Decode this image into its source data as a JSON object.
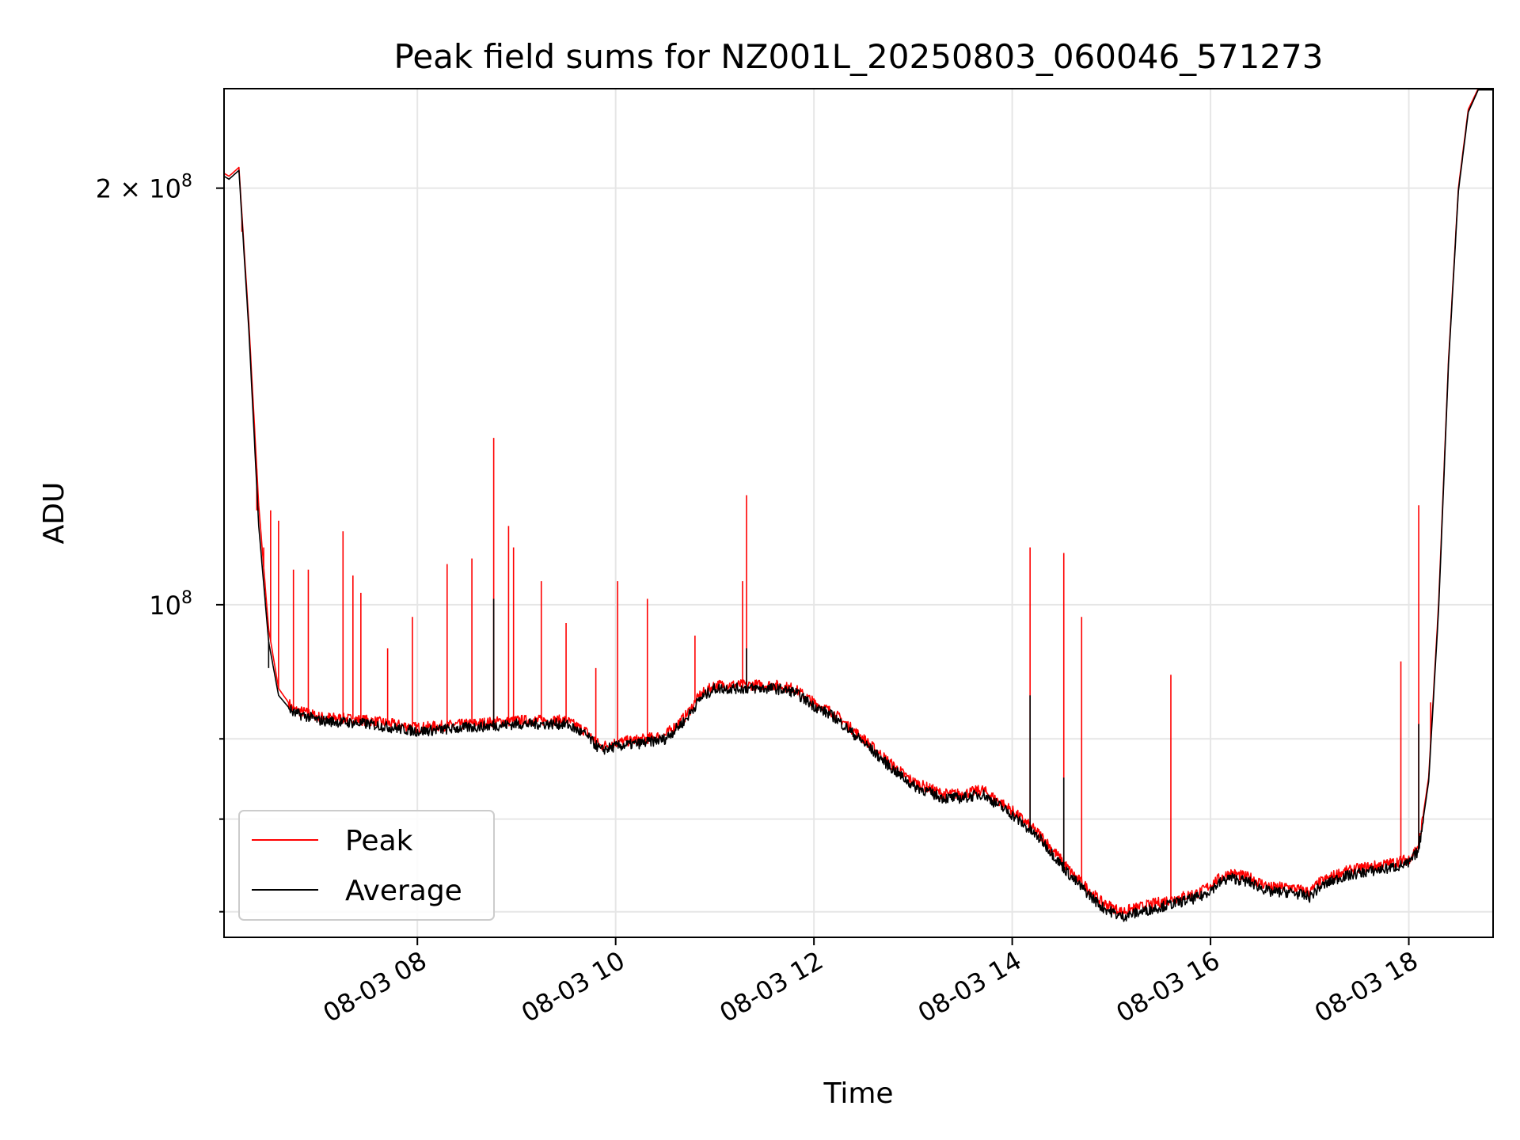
{
  "chart_data": {
    "type": "line",
    "title": "Peak field sums for NZ001L_20250803_060046_571273",
    "xlabel": "Time",
    "ylabel": "ADU",
    "x_unit": "time of day, 2025-08-03, hours",
    "xlim": [
      6.05,
      18.85
    ],
    "ylim": [
      57500000,
      236000000
    ],
    "yscale": "log",
    "grid": true,
    "legend_position": "lower-left",
    "x_ticks": [
      {
        "value": 8,
        "label": "08-03 08"
      },
      {
        "value": 10,
        "label": "08-03 10"
      },
      {
        "value": 12,
        "label": "08-03 12"
      },
      {
        "value": 14,
        "label": "08-03 14"
      },
      {
        "value": 16,
        "label": "08-03 16"
      },
      {
        "value": 18,
        "label": "08-03 18"
      }
    ],
    "y_ticks": [
      {
        "value": 100000000,
        "base": "10",
        "exp": "8"
      },
      {
        "value": 200000000,
        "base": "2 × 10",
        "exp": "8"
      }
    ],
    "y_minor_ticks": [
      60000000,
      70000000,
      80000000
    ],
    "series": [
      {
        "name": "Peak",
        "color": "#ff0000",
        "x": [
          6.05,
          6.1,
          6.2,
          6.3,
          6.4,
          6.5,
          6.6,
          6.75,
          6.9,
          7.0,
          7.5,
          8.0,
          8.5,
          9.0,
          9.5,
          9.7,
          9.85,
          10.0,
          10.3,
          10.5,
          10.7,
          10.85,
          11.0,
          11.3,
          11.6,
          11.8,
          12.0,
          12.2,
          12.5,
          12.8,
          13.0,
          13.3,
          13.5,
          13.7,
          14.0,
          14.3,
          14.6,
          14.9,
          15.1,
          15.3,
          15.5,
          15.7,
          15.9,
          16.1,
          16.2,
          16.4,
          16.6,
          16.8,
          17.0,
          17.1,
          17.3,
          17.5,
          17.8,
          18.0,
          18.1,
          18.2,
          18.3,
          18.4,
          18.5,
          18.6,
          18.7,
          18.85
        ],
        "y": [
          205000000,
          204000000,
          207000000,
          160000000,
          118000000,
          96000000,
          87000000,
          84000000,
          83500000,
          83000000,
          82500000,
          81500000,
          82000000,
          82500000,
          82500000,
          81000000,
          79000000,
          79500000,
          80000000,
          80500000,
          83000000,
          86000000,
          87500000,
          87500000,
          87500000,
          87000000,
          85000000,
          83500000,
          80000000,
          76500000,
          74500000,
          73000000,
          73000000,
          73500000,
          71000000,
          68000000,
          64000000,
          61000000,
          60000000,
          60500000,
          61000000,
          61500000,
          62000000,
          63500000,
          64000000,
          63500000,
          62500000,
          62500000,
          62000000,
          63000000,
          64000000,
          64500000,
          65000000,
          65500000,
          67000000,
          75000000,
          100000000,
          150000000,
          200000000,
          228000000,
          236000000,
          236000000
        ],
        "spikes": [
          {
            "x": 6.23,
            "y": 186000000
          },
          {
            "x": 6.38,
            "y": 117000000
          },
          {
            "x": 6.45,
            "y": 110000000
          },
          {
            "x": 6.52,
            "y": 117000000
          },
          {
            "x": 6.6,
            "y": 115000000
          },
          {
            "x": 6.75,
            "y": 106000000
          },
          {
            "x": 6.9,
            "y": 106000000
          },
          {
            "x": 7.25,
            "y": 113000000
          },
          {
            "x": 7.35,
            "y": 105000000
          },
          {
            "x": 7.43,
            "y": 102000000
          },
          {
            "x": 7.7,
            "y": 93000000
          },
          {
            "x": 7.95,
            "y": 98000000
          },
          {
            "x": 8.3,
            "y": 107000000
          },
          {
            "x": 8.55,
            "y": 108000000
          },
          {
            "x": 8.77,
            "y": 132000000
          },
          {
            "x": 8.92,
            "y": 114000000
          },
          {
            "x": 8.97,
            "y": 110000000
          },
          {
            "x": 9.25,
            "y": 104000000
          },
          {
            "x": 9.5,
            "y": 97000000
          },
          {
            "x": 9.8,
            "y": 90000000
          },
          {
            "x": 10.02,
            "y": 104000000
          },
          {
            "x": 10.32,
            "y": 101000000
          },
          {
            "x": 10.8,
            "y": 95000000
          },
          {
            "x": 11.28,
            "y": 104000000
          },
          {
            "x": 11.32,
            "y": 120000000
          },
          {
            "x": 14.18,
            "y": 110000000
          },
          {
            "x": 14.52,
            "y": 109000000
          },
          {
            "x": 14.7,
            "y": 98000000
          },
          {
            "x": 15.6,
            "y": 89000000
          },
          {
            "x": 17.92,
            "y": 91000000
          },
          {
            "x": 18.1,
            "y": 118000000
          },
          {
            "x": 18.22,
            "y": 85000000
          }
        ]
      },
      {
        "name": "Average",
        "color": "#000000",
        "x": [
          6.05,
          6.1,
          6.2,
          6.3,
          6.4,
          6.5,
          6.6,
          6.75,
          6.9,
          7.0,
          7.5,
          8.0,
          8.5,
          9.0,
          9.5,
          9.7,
          9.85,
          10.0,
          10.3,
          10.5,
          10.7,
          10.85,
          11.0,
          11.3,
          11.6,
          11.8,
          12.0,
          12.2,
          12.5,
          12.8,
          13.0,
          13.3,
          13.5,
          13.7,
          14.0,
          14.3,
          14.6,
          14.9,
          15.1,
          15.3,
          15.5,
          15.7,
          15.9,
          16.1,
          16.2,
          16.4,
          16.6,
          16.8,
          17.0,
          17.1,
          17.3,
          17.5,
          17.8,
          18.0,
          18.1,
          18.2,
          18.3,
          18.4,
          18.5,
          18.6,
          18.7,
          18.85
        ],
        "y": [
          204000000,
          203000000,
          206000000,
          158000000,
          114000000,
          94000000,
          86000000,
          83500000,
          83000000,
          82500000,
          82000000,
          81000000,
          81500000,
          82000000,
          82000000,
          80500000,
          78500000,
          79000000,
          79500000,
          80000000,
          82500000,
          85500000,
          87000000,
          87000000,
          87000000,
          86500000,
          84500000,
          83000000,
          79500000,
          76000000,
          74000000,
          72500000,
          72500000,
          73000000,
          70500000,
          67500000,
          63500000,
          60500000,
          59500000,
          60000000,
          60500000,
          61000000,
          61500000,
          63000000,
          63500000,
          63000000,
          62000000,
          62000000,
          61500000,
          62500000,
          63500000,
          64000000,
          64500000,
          65000000,
          66500000,
          74500000,
          99000000,
          149000000,
          199000000,
          227000000,
          235500000,
          235500000
        ],
        "spikes": [
          {
            "x": 6.5,
            "y": 90000000
          },
          {
            "x": 8.77,
            "y": 101000000
          },
          {
            "x": 11.32,
            "y": 93000000
          },
          {
            "x": 14.18,
            "y": 86000000
          },
          {
            "x": 14.52,
            "y": 75000000
          },
          {
            "x": 18.1,
            "y": 82000000
          }
        ]
      }
    ]
  }
}
